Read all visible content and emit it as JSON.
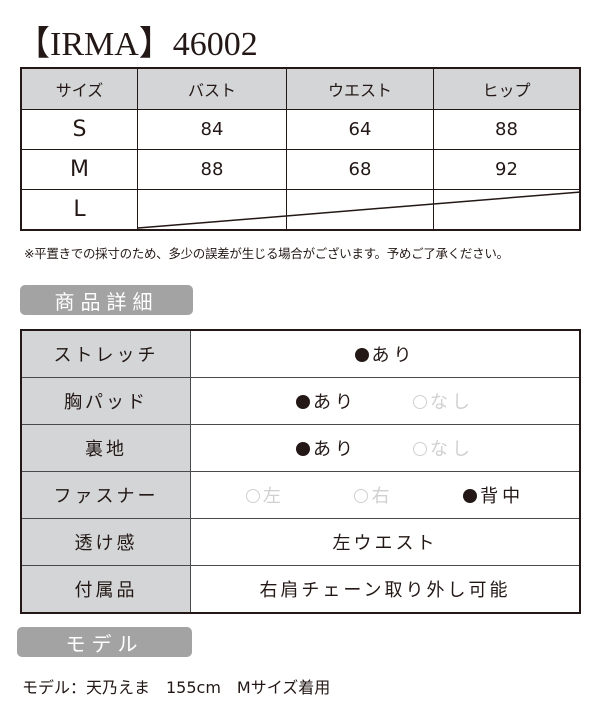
{
  "title": "【IRMA】46002",
  "size_table": {
    "headers": [
      "サイズ",
      "バスト",
      "ウエスト",
      "ヒップ"
    ],
    "rows": [
      {
        "size": "S",
        "bust": "84",
        "waist": "64",
        "hip": "88"
      },
      {
        "size": "M",
        "bust": "88",
        "waist": "68",
        "hip": "92"
      },
      {
        "size": "L",
        "bust": "",
        "waist": "",
        "hip": ""
      }
    ]
  },
  "note": "※平置きでの採寸のため、多少の誤差が生じる場合がございます。予めご了承ください。",
  "details_heading": "商品詳細",
  "details": {
    "stretch": {
      "label": "ストレッチ",
      "options": [
        {
          "text": "あり",
          "selected": true
        }
      ]
    },
    "bust_pad": {
      "label": "胸パッド",
      "options": [
        {
          "text": "あり",
          "selected": true
        },
        {
          "text": "なし",
          "selected": false
        }
      ]
    },
    "lining": {
      "label": "裏地",
      "options": [
        {
          "text": "あり",
          "selected": true
        },
        {
          "text": "なし",
          "selected": false
        }
      ]
    },
    "fastener": {
      "label": "ファスナー",
      "options": [
        {
          "text": "左",
          "selected": false
        },
        {
          "text": "右",
          "selected": false
        },
        {
          "text": "背中",
          "selected": true
        }
      ]
    },
    "sheerness": {
      "label": "透け感",
      "value": "左ウエスト"
    },
    "accessories": {
      "label": "付属品",
      "value": "右肩チェーン取り外し可能"
    }
  },
  "model_heading": "モデル",
  "model_info": "モデル：天乃えま　155cm　Mサイズ着用",
  "colors": {
    "text": "#231815",
    "header_bg": "#d3d5d6",
    "pill_bg": "#a3a3a3",
    "unselected": "#d0d0d0"
  }
}
